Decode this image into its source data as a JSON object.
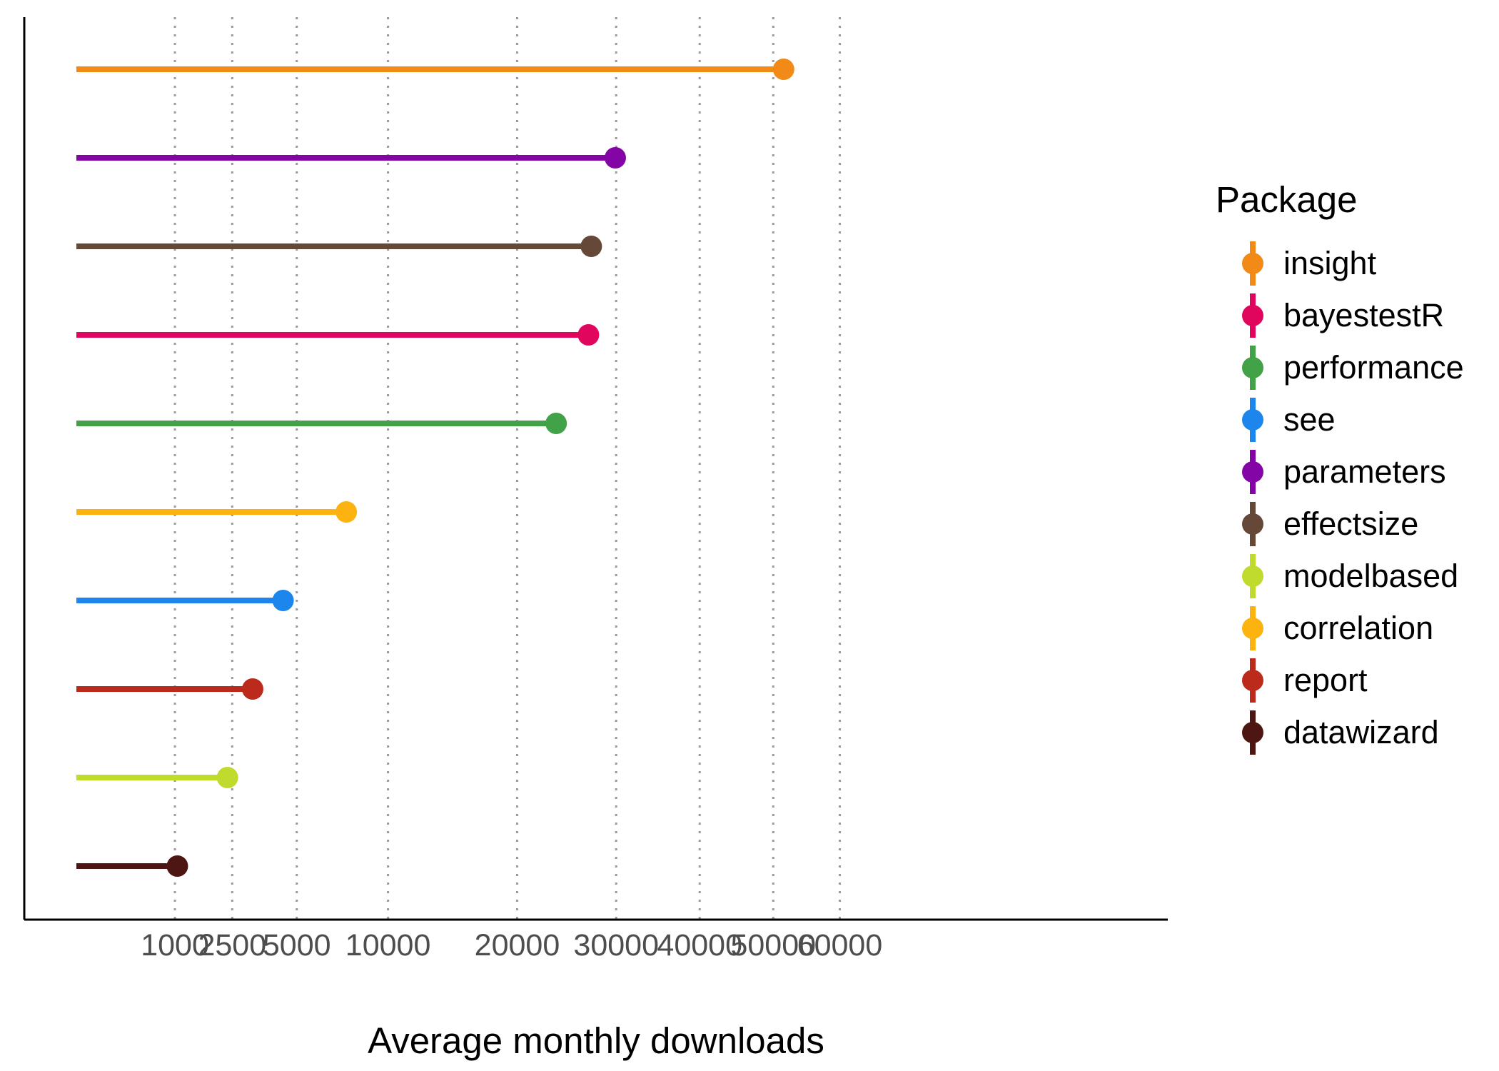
{
  "chart_data": {
    "type": "lollipop",
    "title": "",
    "xlabel": "Average monthly downloads",
    "ylabel": "",
    "x_scale": "sqrt",
    "xlim": [
      0,
      65000
    ],
    "x_ticks": [
      1000,
      2500,
      5000,
      10000,
      20000,
      30000,
      40000,
      50000,
      60000
    ],
    "x_tick_labels": [
      "1000",
      "2500",
      "5000",
      "10000",
      "20000",
      "30000",
      "40000",
      "50000",
      "60000"
    ],
    "grid": "vertical dotted",
    "legend_title": "Package",
    "legend_position": "right",
    "series": [
      {
        "name": "insight",
        "value": 51500,
        "color": "#F28A17"
      },
      {
        "name": "bayestestR",
        "value": 27000,
        "color": "#E1065D"
      },
      {
        "name": "performance",
        "value": 23700,
        "color": "#41A247"
      },
      {
        "name": "see",
        "value": 4400,
        "color": "#1D86EC"
      },
      {
        "name": "parameters",
        "value": 29900,
        "color": "#8405A5"
      },
      {
        "name": "effectsize",
        "value": 27300,
        "color": "#654838"
      },
      {
        "name": "modelbased",
        "value": 2350,
        "color": "#C1DA2E"
      },
      {
        "name": "correlation",
        "value": 7500,
        "color": "#FCB20F"
      },
      {
        "name": "report",
        "value": 3200,
        "color": "#BC2A1C"
      },
      {
        "name": "datawizard",
        "value": 1050,
        "color": "#4D1612"
      }
    ],
    "bar_order_top_to_bottom": [
      "insight",
      "parameters",
      "effectsize",
      "bayestestR",
      "performance",
      "correlation",
      "see",
      "report",
      "modelbased",
      "datawizard"
    ]
  }
}
